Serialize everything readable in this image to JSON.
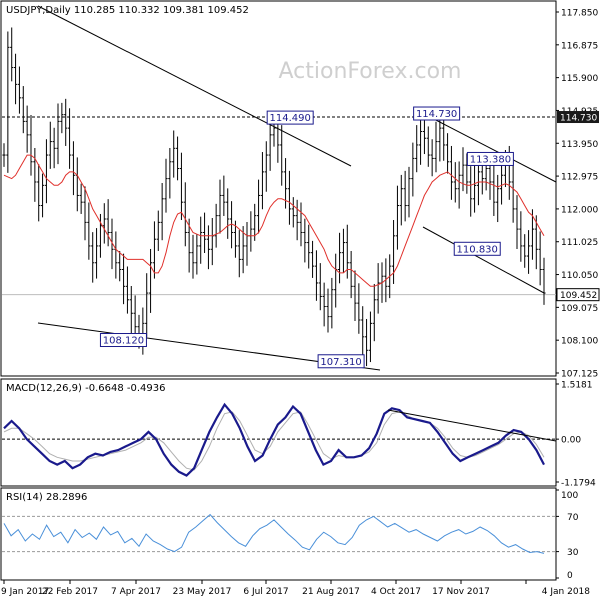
{
  "chart_data": {
    "type": "candlestick",
    "watermark": "ActionForex.com",
    "price_panel": {
      "title": "USDJPY,Daily  110.285 110.332 109.381 109.452",
      "ylim": [
        107.125,
        117.85
      ],
      "y_ticks": [
        "117.850",
        "116.875",
        "115.900",
        "114.925",
        "113.950",
        "112.975",
        "112.000",
        "111.025",
        "110.050",
        "109.075",
        "108.100",
        "107.125"
      ],
      "current_price": "109.452",
      "resistance_line": {
        "value": 114.73,
        "label": "114.730"
      },
      "annotations": [
        {
          "label": "114.490",
          "index": 34,
          "value": 114.49
        },
        {
          "label": "114.730",
          "index": 50,
          "value": 114.73
        },
        {
          "label": "113.380",
          "index": 55,
          "value": 113.38
        },
        {
          "label": "110.830",
          "index": 54,
          "value": 110.83
        },
        {
          "label": "108.120",
          "index": 16,
          "value": 108.12
        },
        {
          "label": "107.310",
          "index": 40,
          "value": 107.31
        }
      ],
      "close": [
        113.6,
        116.8,
        116.2,
        115.7,
        115.3,
        114.6,
        114.2,
        113.4,
        112.8,
        112.1,
        112.7,
        113.6,
        114.0,
        113.8,
        114.6,
        114.8,
        114.4,
        113.6,
        113.0,
        112.4,
        112.2,
        111.6,
        110.9,
        110.4,
        110.9,
        111.5,
        111.7,
        111.3,
        110.8,
        110.4,
        110.2,
        109.7,
        109.3,
        108.9,
        108.5,
        108.2,
        108.6,
        109.5,
        110.4,
        111.1,
        111.6,
        112.3,
        112.9,
        113.4,
        113.8,
        113.2,
        112.2,
        111.3,
        110.7,
        110.4,
        110.9,
        111.3,
        111.1,
        110.8,
        111.2,
        111.8,
        112.4,
        112.2,
        111.7,
        111.3,
        110.9,
        110.5,
        110.9,
        111.2,
        111.4,
        111.8,
        112.4,
        113.1,
        113.6,
        114.2,
        114.4,
        113.9,
        113.1,
        112.6,
        112.0,
        111.8,
        111.6,
        111.3,
        111.0,
        110.7,
        110.3,
        109.8,
        109.4,
        109.1,
        108.8,
        109.6,
        110.2,
        110.7,
        111.0,
        110.4,
        109.7,
        109.2,
        108.7,
        108.2,
        107.8,
        108.6,
        109.3,
        109.8,
        110.0,
        109.7,
        110.3,
        111.2,
        112.1,
        112.6,
        112.1,
        112.9,
        113.5,
        113.9,
        114.3,
        114.1,
        113.6,
        113.5,
        114.0,
        114.4,
        113.9,
        113.4,
        112.8,
        112.6,
        113.0,
        113.3,
        112.8,
        112.3,
        112.7,
        113.1,
        112.9,
        113.2,
        112.8,
        112.2,
        112.6,
        113.0,
        113.4,
        112.8,
        112.0,
        111.4,
        110.9,
        110.6,
        110.9,
        111.4,
        110.8,
        110.2,
        109.5
      ],
      "ma": [
        113.0,
        112.95,
        112.9,
        113.0,
        113.2,
        113.4,
        113.6,
        113.6,
        113.5,
        113.3,
        113.1,
        112.9,
        112.8,
        112.7,
        112.7,
        112.8,
        113.0,
        113.1,
        113.1,
        113.0,
        112.8,
        112.6,
        112.3,
        112.0,
        111.8,
        111.6,
        111.4,
        111.2,
        111.0,
        110.8,
        110.7,
        110.6,
        110.5,
        110.5,
        110.5,
        110.5,
        110.5,
        110.4,
        110.3,
        110.1,
        110.1,
        110.3,
        110.7,
        111.2,
        111.6,
        111.85,
        111.9,
        111.7,
        111.5,
        111.3,
        111.25,
        111.2,
        111.2,
        111.2,
        111.2,
        111.25,
        111.3,
        111.4,
        111.5,
        111.55,
        111.5,
        111.4,
        111.3,
        111.2,
        111.2,
        111.2,
        111.3,
        111.5,
        111.8,
        112.05,
        112.2,
        112.3,
        112.3,
        112.25,
        112.2,
        112.1,
        112.0,
        111.9,
        111.8,
        111.6,
        111.4,
        111.2,
        111.0,
        110.8,
        110.5,
        110.3,
        110.2,
        110.1,
        110.1,
        110.2,
        110.2,
        110.1,
        110.0,
        109.9,
        109.8,
        109.7,
        109.7,
        109.75,
        109.8,
        109.9,
        110.0,
        110.1,
        110.3,
        110.6,
        110.9,
        111.2,
        111.5,
        111.8,
        112.1,
        112.4,
        112.6,
        112.8,
        112.9,
        113.0,
        113.05,
        113.1,
        113.0,
        112.9,
        112.8,
        112.75,
        112.7,
        112.7,
        112.75,
        112.8,
        112.8,
        112.8,
        112.75,
        112.7,
        112.65,
        112.7,
        112.75,
        112.7,
        112.6,
        112.5,
        112.3,
        112.1,
        111.9,
        111.8,
        111.6,
        111.4,
        111.2
      ]
    },
    "macd_panel": {
      "title": "MACD(12,26,9) -0.6648 -0.4936",
      "ylim": [
        -1.1794,
        1.5181
      ],
      "y_ticks": [
        "1.5181",
        "0.00",
        "-1.1794"
      ],
      "macd": [
        0.3,
        0.5,
        0.3,
        0.0,
        -0.2,
        -0.4,
        -0.6,
        -0.7,
        -0.6,
        -0.8,
        -0.7,
        -0.5,
        -0.4,
        -0.45,
        -0.35,
        -0.3,
        -0.2,
        -0.1,
        0.0,
        0.2,
        0.0,
        -0.4,
        -0.7,
        -0.9,
        -1.0,
        -0.8,
        -0.3,
        0.2,
        0.6,
        0.95,
        0.7,
        0.3,
        -0.2,
        -0.6,
        -0.45,
        0.0,
        0.4,
        0.6,
        0.9,
        0.7,
        0.2,
        -0.3,
        -0.7,
        -0.6,
        -0.3,
        -0.5,
        -0.5,
        -0.45,
        -0.25,
        0.15,
        0.7,
        0.85,
        0.8,
        0.6,
        0.55,
        0.5,
        0.45,
        0.2,
        -0.1,
        -0.4,
        -0.6,
        -0.5,
        -0.4,
        -0.3,
        -0.2,
        -0.1,
        0.1,
        0.25,
        0.2,
        0.0,
        -0.3,
        -0.7
      ],
      "signal": [
        0.2,
        0.3,
        0.3,
        0.15,
        0.0,
        -0.2,
        -0.4,
        -0.5,
        -0.55,
        -0.6,
        -0.6,
        -0.55,
        -0.5,
        -0.45,
        -0.4,
        -0.35,
        -0.3,
        -0.2,
        -0.1,
        0.05,
        0.05,
        -0.1,
        -0.35,
        -0.6,
        -0.8,
        -0.85,
        -0.6,
        -0.2,
        0.3,
        0.7,
        0.75,
        0.5,
        0.1,
        -0.3,
        -0.4,
        -0.2,
        0.2,
        0.45,
        0.7,
        0.75,
        0.4,
        0.0,
        -0.4,
        -0.55,
        -0.45,
        -0.5,
        -0.5,
        -0.45,
        -0.35,
        -0.1,
        0.4,
        0.7,
        0.75,
        0.65,
        0.55,
        0.5,
        0.45,
        0.3,
        0.05,
        -0.25,
        -0.45,
        -0.5,
        -0.45,
        -0.35,
        -0.25,
        -0.15,
        0.0,
        0.15,
        0.2,
        0.1,
        -0.15,
        -0.5
      ]
    },
    "rsi_panel": {
      "title": "RSI(14) 28.2896",
      "ylim": [
        0,
        100
      ],
      "y_ticks": [
        "100",
        "70",
        "30",
        "0"
      ],
      "levels": [
        70,
        30
      ],
      "values": [
        62,
        48,
        55,
        42,
        50,
        44,
        60,
        47,
        52,
        40,
        55,
        46,
        51,
        44,
        58,
        49,
        53,
        40,
        45,
        36,
        50,
        42,
        38,
        33,
        30,
        35,
        52,
        58,
        65,
        72,
        63,
        55,
        47,
        40,
        36,
        48,
        56,
        60,
        66,
        58,
        50,
        43,
        35,
        32,
        44,
        52,
        47,
        40,
        38,
        46,
        60,
        66,
        70,
        64,
        58,
        62,
        57,
        52,
        55,
        50,
        46,
        42,
        48,
        52,
        55,
        50,
        53,
        58,
        54,
        48,
        40,
        35,
        38,
        33,
        29,
        30,
        28
      ]
    },
    "x_ticks": [
      "9 Jan 2017",
      "22 Feb 2017",
      "7 Apr 2017",
      "23 May 2017",
      "6 Jul 2017",
      "21 Aug 2017",
      "4 Oct 2017",
      "17 Nov 2017",
      "4 Jan 2018"
    ]
  }
}
